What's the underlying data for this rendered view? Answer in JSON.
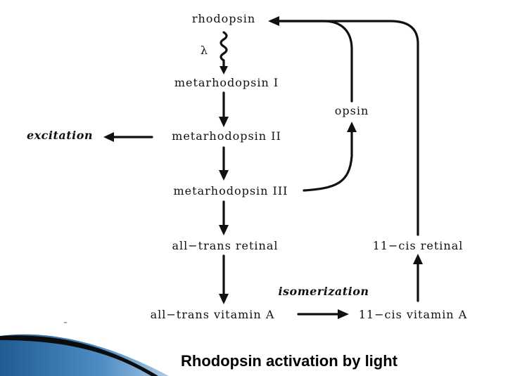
{
  "diagram": {
    "nodes": {
      "rhodopsin": "rhodopsin",
      "meta1": "metarhodopsin I",
      "meta2": "metarhodopsin II",
      "meta3": "metarhodopsin III",
      "all_trans_retinal": "all−trans retinal",
      "all_trans_vitamin_a": "all−trans vitamin A",
      "opsin": "opsin",
      "cis_retinal": "11−cis retinal",
      "cis_vitamin_a": "11−cis vitamin A"
    },
    "labels": {
      "lambda": "λ",
      "excitation": "excitation",
      "isomerization": "isomerization"
    }
  },
  "caption": "Rhodopsin activation by light",
  "colors": {
    "ink": "#111111",
    "accent_blue": "#2b6fa8"
  }
}
